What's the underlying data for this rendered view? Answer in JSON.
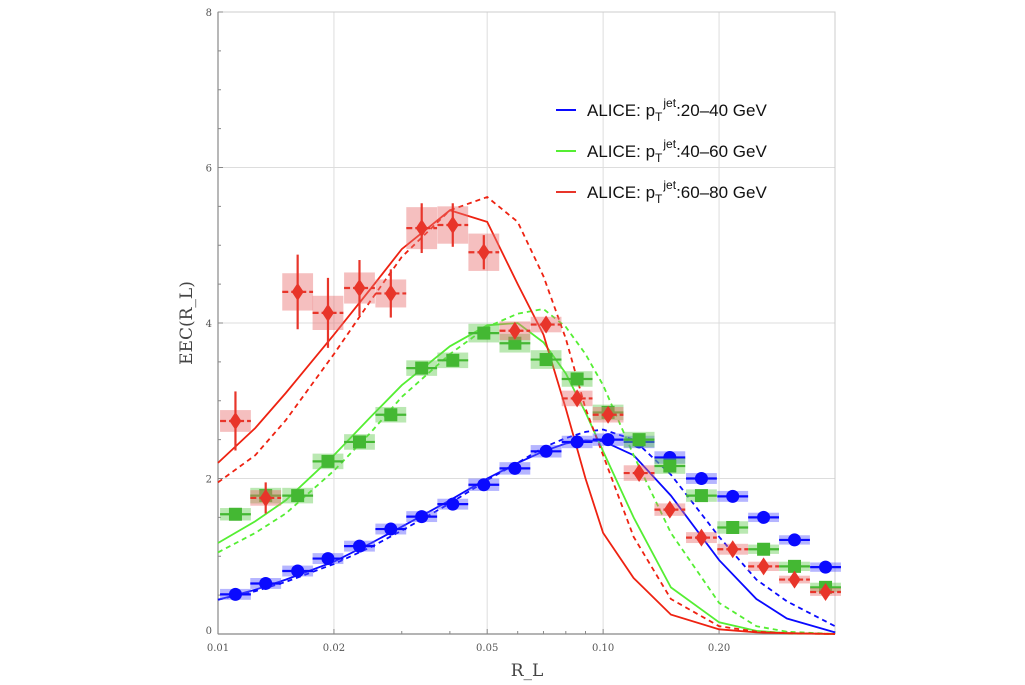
{
  "chart_data": {
    "type": "scatter",
    "title": "",
    "xlabel": "R_L",
    "ylabel": "EEC(R_L)",
    "xscale": "log",
    "xlim": [
      0.01,
      0.4
    ],
    "ylim": [
      0,
      8
    ],
    "grid": true,
    "legend_position": "top-right",
    "x_ticks": [
      {
        "value": 0.01,
        "label": "0.01"
      },
      {
        "value": 0.02,
        "label": "0.02"
      },
      {
        "value": 0.05,
        "label": "0.05"
      },
      {
        "value": 0.1,
        "label": "0.10"
      },
      {
        "value": 0.2,
        "label": "0.20"
      }
    ],
    "y_ticks": [
      {
        "value": 0,
        "label": "0"
      },
      {
        "value": 2,
        "label": "2"
      },
      {
        "value": 4,
        "label": "4"
      },
      {
        "value": 6,
        "label": "6"
      },
      {
        "value": 8,
        "label": "8"
      }
    ],
    "x": [
      0.0111,
      0.0133,
      0.0161,
      0.0193,
      0.0233,
      0.0281,
      0.0338,
      0.0407,
      0.049,
      0.059,
      0.0711,
      0.0856,
      0.103,
      0.124,
      0.149,
      0.18,
      0.217,
      0.261,
      0.314,
      0.378
    ],
    "series": [
      {
        "name": "ALICE: pT jet:20–40 GeV",
        "legend": {
          "prefix": "ALICE: p",
          "sub": "T",
          "sup": "jet",
          "suffix": ":20–40 GeV"
        },
        "marker": "circle",
        "color": "#0a0aff",
        "box_color": "#5a5aff",
        "y": [
          0.51,
          0.65,
          0.81,
          0.97,
          1.13,
          1.35,
          1.51,
          1.67,
          1.92,
          2.13,
          2.35,
          2.47,
          2.5,
          2.47,
          2.27,
          2.0,
          1.77,
          1.5,
          1.21,
          0.86
        ],
        "stat_err": [
          0.02,
          0.02,
          0.02,
          0.02,
          0.02,
          0.02,
          0.02,
          0.02,
          0.02,
          0.02,
          0.02,
          0.02,
          0.02,
          0.02,
          0.03,
          0.03,
          0.03,
          0.03,
          0.03,
          0.03
        ],
        "sys_err": [
          0.07,
          0.07,
          0.07,
          0.07,
          0.07,
          0.07,
          0.07,
          0.07,
          0.08,
          0.08,
          0.08,
          0.08,
          0.08,
          0.08,
          0.08,
          0.07,
          0.07,
          0.06,
          0.06,
          0.06
        ]
      },
      {
        "name": "ALICE: pT jet:40–60 GeV",
        "legend": {
          "prefix": "ALICE: p",
          "sub": "T",
          "sup": "jet",
          "suffix": ":40–60 GeV"
        },
        "marker": "square",
        "color": "#44b833",
        "box_color": "#66cc55",
        "y": [
          1.54,
          1.78,
          1.78,
          2.22,
          2.47,
          2.82,
          3.42,
          3.52,
          3.87,
          3.74,
          3.53,
          3.28,
          2.85,
          2.5,
          2.16,
          1.78,
          1.37,
          1.09,
          0.87,
          0.6
        ],
        "stat_err": [
          0.03,
          0.03,
          0.03,
          0.03,
          0.03,
          0.03,
          0.03,
          0.03,
          0.03,
          0.03,
          0.03,
          0.03,
          0.03,
          0.03,
          0.03,
          0.03,
          0.03,
          0.03,
          0.03,
          0.03
        ],
        "sys_err": [
          0.08,
          0.1,
          0.1,
          0.1,
          0.1,
          0.1,
          0.1,
          0.1,
          0.12,
          0.12,
          0.12,
          0.1,
          0.1,
          0.1,
          0.1,
          0.08,
          0.08,
          0.06,
          0.06,
          0.06
        ]
      },
      {
        "name": "ALICE: pT jet:60–80 GeV",
        "legend": {
          "prefix": "ALICE: p",
          "sub": "T",
          "sup": "jet",
          "suffix": ":60–80 GeV"
        },
        "marker": "diamond",
        "color": "#e8352a",
        "box_color": "#e87070",
        "y": [
          2.74,
          1.75,
          4.4,
          4.13,
          4.45,
          4.38,
          5.22,
          5.26,
          4.91,
          3.9,
          3.98,
          3.03,
          2.82,
          2.07,
          1.6,
          1.24,
          1.09,
          0.87,
          0.7,
          0.54
        ],
        "stat_err": [
          0.38,
          0.2,
          0.48,
          0.45,
          0.36,
          0.31,
          0.32,
          0.28,
          0.22,
          0.1,
          0.1,
          0.08,
          0.08,
          0.06,
          0.05,
          0.04,
          0.04,
          0.03,
          0.03,
          0.03
        ],
        "sys_err": [
          0.14,
          0.1,
          0.24,
          0.22,
          0.2,
          0.18,
          0.27,
          0.24,
          0.24,
          0.12,
          0.1,
          0.1,
          0.1,
          0.1,
          0.08,
          0.07,
          0.07,
          0.06,
          0.05,
          0.05
        ]
      }
    ],
    "curves_x": [
      0.01,
      0.0125,
      0.015,
      0.02,
      0.025,
      0.03,
      0.04,
      0.05,
      0.06,
      0.07,
      0.08,
      0.09,
      0.1,
      0.12,
      0.15,
      0.2,
      0.25,
      0.3,
      0.4
    ],
    "curves": [
      {
        "color": "#0a0aff",
        "style": "solid",
        "y": [
          0.44,
          0.57,
          0.7,
          0.93,
          1.17,
          1.38,
          1.72,
          2.0,
          2.2,
          2.35,
          2.45,
          2.49,
          2.48,
          2.3,
          1.78,
          0.95,
          0.45,
          0.2,
          0.02
        ]
      },
      {
        "color": "#0a0aff",
        "style": "dashed",
        "y": [
          0.44,
          0.55,
          0.67,
          0.9,
          1.12,
          1.33,
          1.68,
          1.98,
          2.2,
          2.4,
          2.52,
          2.6,
          2.63,
          2.5,
          2.05,
          1.25,
          0.7,
          0.42,
          0.1
        ]
      },
      {
        "color": "#55ee33",
        "style": "solid",
        "y": [
          1.17,
          1.45,
          1.72,
          2.3,
          2.8,
          3.2,
          3.7,
          3.97,
          4.0,
          3.75,
          3.35,
          2.85,
          2.35,
          1.5,
          0.6,
          0.15,
          0.04,
          0.01,
          0
        ]
      },
      {
        "color": "#55ee33",
        "style": "dashed",
        "y": [
          1.05,
          1.3,
          1.55,
          2.1,
          2.6,
          3.05,
          3.6,
          3.95,
          4.12,
          4.18,
          3.95,
          3.6,
          3.2,
          2.3,
          1.3,
          0.4,
          0.1,
          0.03,
          0
        ]
      },
      {
        "color": "#ee2211",
        "style": "solid",
        "y": [
          2.2,
          2.65,
          3.1,
          3.85,
          4.45,
          4.95,
          5.45,
          5.3,
          4.5,
          3.85,
          2.9,
          2.0,
          1.3,
          0.72,
          0.25,
          0.06,
          0.02,
          0.01,
          0
        ]
      },
      {
        "color": "#ee2211",
        "style": "dashed",
        "y": [
          1.95,
          2.3,
          2.75,
          3.6,
          4.3,
          4.85,
          5.45,
          5.62,
          5.3,
          4.6,
          3.8,
          2.9,
          2.3,
          1.25,
          0.45,
          0.1,
          0.03,
          0.01,
          0
        ]
      }
    ]
  }
}
